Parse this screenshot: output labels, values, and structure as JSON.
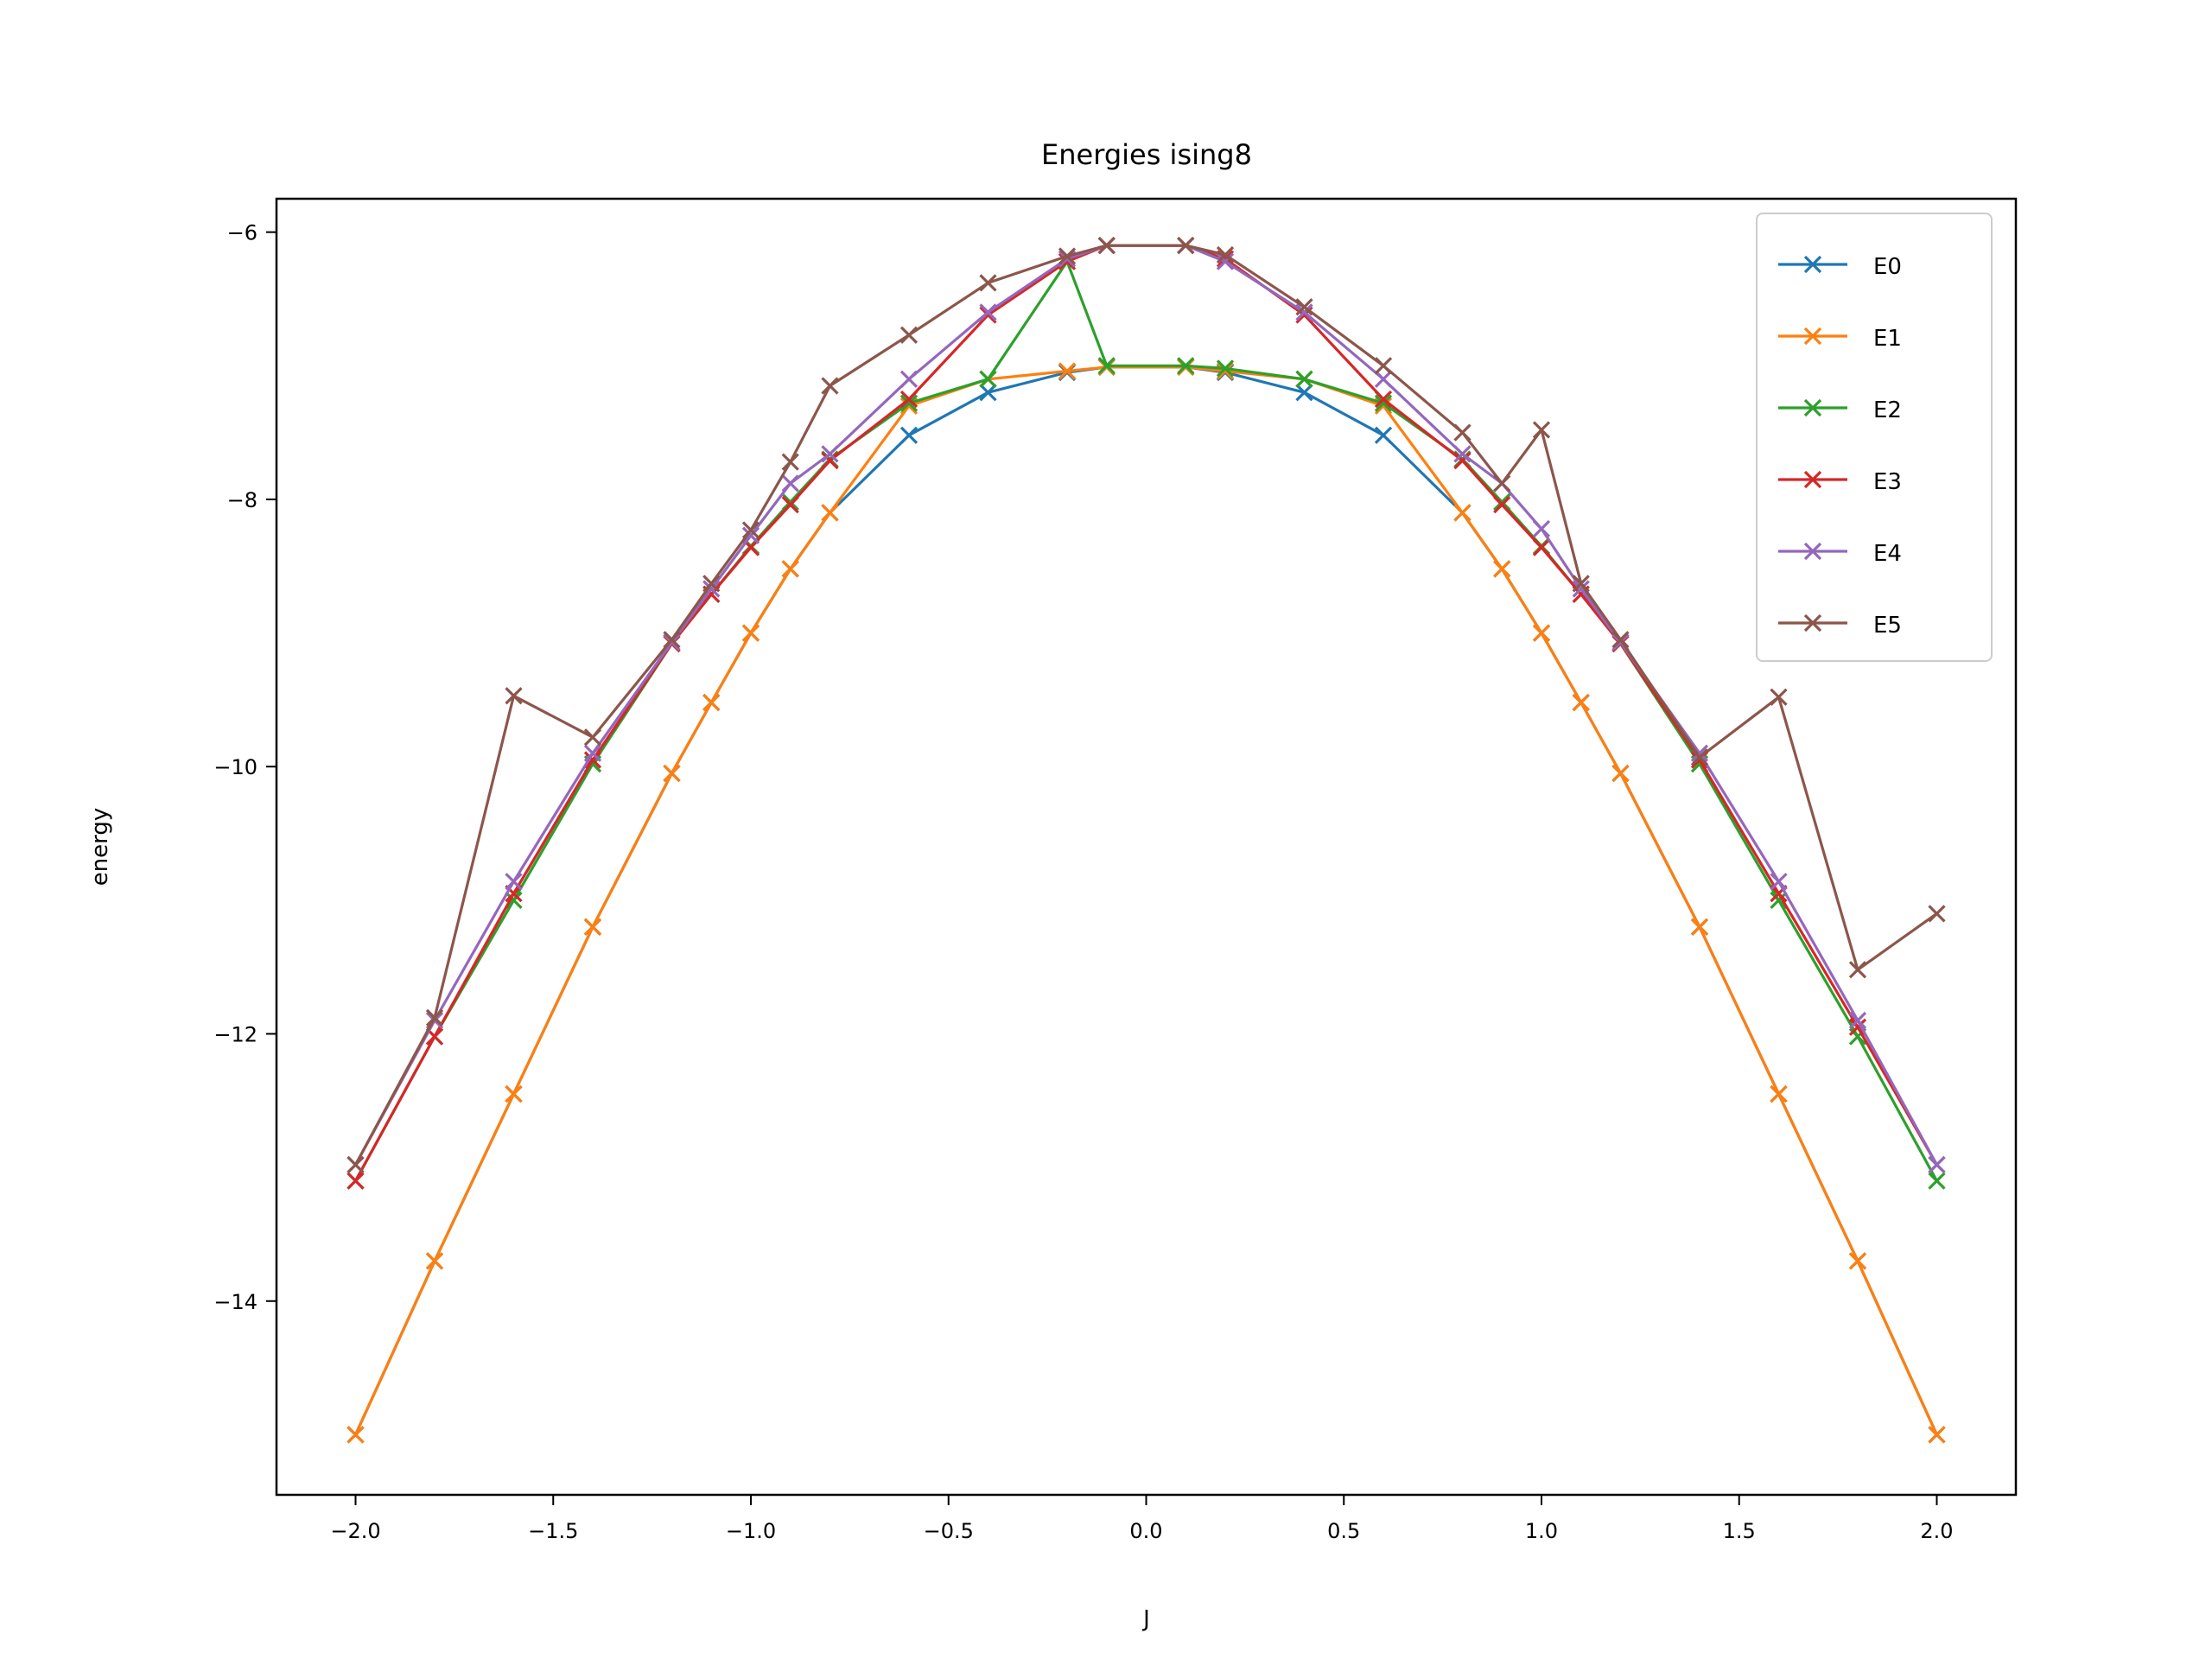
{
  "chart_data": {
    "type": "line",
    "title": "Energies ising8",
    "xlabel": "J",
    "ylabel": "energy",
    "xlim": [
      -2.2,
      2.2
    ],
    "ylim": [
      -15.45,
      -5.75
    ],
    "x_ticks": [
      -2.0,
      -1.5,
      -1.0,
      -0.5,
      0.0,
      0.5,
      1.0,
      1.5,
      2.0
    ],
    "x_tick_labels": [
      "−2.0",
      "−1.5",
      "−1.0",
      "−0.5",
      "0.0",
      "0.5",
      "1.0",
      "1.5",
      "2.0"
    ],
    "y_ticks": [
      -14,
      -12,
      -10,
      -8,
      -6
    ],
    "y_tick_labels": [
      "−14",
      "−12",
      "−10",
      "−8",
      "−6"
    ],
    "grid": false,
    "legend_position": "top-right",
    "marker": "x",
    "x": [
      -2.0,
      -1.8,
      -1.6,
      -1.4,
      -1.2,
      -1.1,
      -1.0,
      -0.9,
      -0.8,
      -0.6,
      -0.4,
      -0.2,
      -0.1,
      0.1,
      0.2,
      0.4,
      0.6,
      0.8,
      0.9,
      1.0,
      1.1,
      1.2,
      1.4,
      1.6,
      1.8,
      2.0
    ],
    "series": [
      {
        "name": "E0",
        "color": "#1f77b4",
        "values": [
          -15.0,
          -13.7,
          -12.45,
          -11.2,
          -10.05,
          -9.52,
          -9.0,
          -8.52,
          -8.1,
          -7.52,
          -7.2,
          -7.05,
          -7.01,
          -7.01,
          -7.05,
          -7.2,
          -7.52,
          -8.1,
          -8.52,
          -9.0,
          -9.52,
          -10.05,
          -11.2,
          -12.45,
          -13.7,
          -15.0
        ]
      },
      {
        "name": "E1",
        "color": "#ff7f0e",
        "values": [
          -15.0,
          -13.7,
          -12.45,
          -11.2,
          -10.05,
          -9.52,
          -9.0,
          -8.52,
          -8.1,
          -7.3,
          -7.1,
          -7.04,
          -7.01,
          -7.01,
          -7.04,
          -7.1,
          -7.3,
          -8.1,
          -8.52,
          -9.0,
          -9.52,
          -10.05,
          -11.2,
          -12.45,
          -13.7,
          -15.0
        ]
      },
      {
        "name": "E2",
        "color": "#2ca02c",
        "values": [
          -13.1,
          -12.02,
          -11.0,
          -9.98,
          -9.08,
          -8.71,
          -8.35,
          -8.02,
          -7.7,
          -7.28,
          -7.1,
          -6.22,
          -7.0,
          -7.0,
          -7.02,
          -7.1,
          -7.28,
          -7.7,
          -8.02,
          -8.35,
          -8.71,
          -9.08,
          -9.98,
          -11.0,
          -12.02,
          -13.1
        ]
      },
      {
        "name": "E3",
        "color": "#d62728",
        "values": [
          -13.1,
          -12.02,
          -10.95,
          -9.95,
          -9.08,
          -8.71,
          -8.36,
          -8.04,
          -7.71,
          -7.25,
          -6.62,
          -6.22,
          -6.1,
          -6.1,
          -6.2,
          -6.62,
          -7.25,
          -7.71,
          -8.04,
          -8.36,
          -8.71,
          -9.08,
          -9.95,
          -10.95,
          -11.95,
          -12.98
        ]
      },
      {
        "name": "E4",
        "color": "#9467bd",
        "values": [
          -12.98,
          -11.9,
          -10.86,
          -9.9,
          -9.07,
          -8.67,
          -8.27,
          -7.88,
          -7.66,
          -7.1,
          -6.6,
          -6.2,
          -6.1,
          -6.1,
          -6.22,
          -6.6,
          -7.1,
          -7.66,
          -7.88,
          -8.22,
          -8.67,
          -9.07,
          -9.9,
          -10.86,
          -11.9,
          -12.98
        ]
      },
      {
        "name": "E5",
        "color": "#8c564b",
        "values": [
          -12.98,
          -11.88,
          -9.47,
          -9.78,
          -9.05,
          -8.63,
          -8.23,
          -7.72,
          -7.15,
          -6.77,
          -6.38,
          -6.18,
          -6.1,
          -6.1,
          -6.17,
          -6.56,
          -7.0,
          -7.5,
          -7.88,
          -7.48,
          -8.63,
          -9.05,
          -9.93,
          -9.48,
          -11.52,
          -11.1
        ]
      }
    ]
  }
}
